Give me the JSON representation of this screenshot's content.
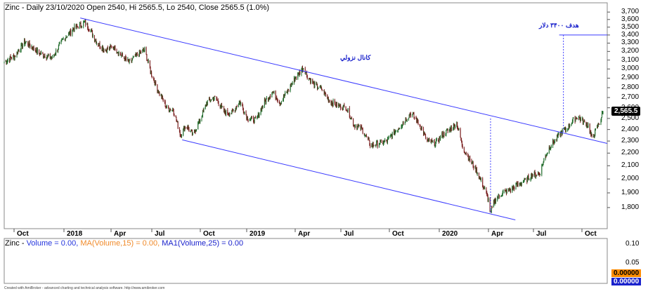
{
  "header": {
    "title": "Zinc - Daily 23/10/2020 Open 2540, Hi 2565.5, Lo 2540, Close 2565.5 (1.0%)"
  },
  "volume_header": {
    "prefix": "Zinc - ",
    "volume": "Volume = 0.00,",
    "ma15": "MA(Volume,15) = 0.00,",
    "ma25": "MA1(Volume,25) = 0.00"
  },
  "annotations": {
    "channel": "كانال نزولي",
    "target": "هدف ۳۴۰۰ دلار"
  },
  "price_tag": "2,565.5",
  "volume_tags": [
    "0.00000",
    "0.00000"
  ],
  "volume_axis": [
    "0.10",
    "0.05"
  ],
  "footer": "Created with AmiBroker - advanced charting and technical analysis software. http://www.amibroker.com",
  "colors": {
    "up": "#1f6b2a",
    "down": "#7a1f1f",
    "channel": "#3b3bff",
    "grid": "#cccccc"
  },
  "chart_data": {
    "type": "candlestick",
    "title": "Zinc - Daily 23/10/2020 Open 2540, Hi 2565.5, Lo 2540, Close 2565.5 (1.0%)",
    "x_tick_labels": [
      "Oct",
      "2018",
      "Apr",
      "Jul",
      "Oct",
      "2019",
      "Apr",
      "Jul",
      "Oct",
      "2020",
      "Apr",
      "Jul",
      "Oct"
    ],
    "y_tick_labels": [
      "3,700",
      "3,600",
      "3,500",
      "3,400",
      "3,300",
      "3,200",
      "3,100",
      "3,000",
      "2,900",
      "2,800",
      "2,700",
      "2,600",
      "2,500",
      "2,400",
      "2,300",
      "2,200",
      "2,100",
      "2,000",
      "1,900",
      "1,800"
    ],
    "y_log": true,
    "ylim": [
      1700,
      3750
    ],
    "x_range": [
      "2017-09-15",
      "2020-10-31"
    ],
    "close_anchors": [
      [
        "2017-09-15",
        3080
      ],
      [
        "2017-10-05",
        3150
      ],
      [
        "2017-10-25",
        3320
      ],
      [
        "2017-11-20",
        3180
      ],
      [
        "2017-12-15",
        3120
      ],
      [
        "2018-01-05",
        3350
      ],
      [
        "2018-01-25",
        3480
      ],
      [
        "2018-02-15",
        3560
      ],
      [
        "2018-02-25",
        3460
      ],
      [
        "2018-03-10",
        3300
      ],
      [
        "2018-03-25",
        3220
      ],
      [
        "2018-04-10",
        3260
      ],
      [
        "2018-04-25",
        3150
      ],
      [
        "2018-05-10",
        3070
      ],
      [
        "2018-05-25",
        3160
      ],
      [
        "2018-06-08",
        3220
      ],
      [
        "2018-06-20",
        2950
      ],
      [
        "2018-07-05",
        2750
      ],
      [
        "2018-07-20",
        2600
      ],
      [
        "2018-08-01",
        2580
      ],
      [
        "2018-08-15",
        2350
      ],
      [
        "2018-08-25",
        2440
      ],
      [
        "2018-09-07",
        2350
      ],
      [
        "2018-09-20",
        2480
      ],
      [
        "2018-10-05",
        2660
      ],
      [
        "2018-10-20",
        2700
      ],
      [
        "2018-11-05",
        2560
      ],
      [
        "2018-11-20",
        2550
      ],
      [
        "2018-12-05",
        2660
      ],
      [
        "2018-12-20",
        2500
      ],
      [
        "2019-01-05",
        2480
      ],
      [
        "2019-01-20",
        2650
      ],
      [
        "2019-02-05",
        2760
      ],
      [
        "2019-02-20",
        2650
      ],
      [
        "2019-03-05",
        2760
      ],
      [
        "2019-03-20",
        2900
      ],
      [
        "2019-04-05",
        3020
      ],
      [
        "2019-04-12",
        2920
      ],
      [
        "2019-04-25",
        2830
      ],
      [
        "2019-05-10",
        2780
      ],
      [
        "2019-05-25",
        2660
      ],
      [
        "2019-06-10",
        2620
      ],
      [
        "2019-06-25",
        2600
      ],
      [
        "2019-07-10",
        2440
      ],
      [
        "2019-07-25",
        2400
      ],
      [
        "2019-08-10",
        2260
      ],
      [
        "2019-08-25",
        2280
      ],
      [
        "2019-09-10",
        2300
      ],
      [
        "2019-09-25",
        2380
      ],
      [
        "2019-10-10",
        2460
      ],
      [
        "2019-10-25",
        2550
      ],
      [
        "2019-11-10",
        2450
      ],
      [
        "2019-11-25",
        2300
      ],
      [
        "2019-12-10",
        2280
      ],
      [
        "2019-12-25",
        2360
      ],
      [
        "2020-01-10",
        2410
      ],
      [
        "2020-01-20",
        2460
      ],
      [
        "2020-01-31",
        2250
      ],
      [
        "2020-02-15",
        2140
      ],
      [
        "2020-02-28",
        2050
      ],
      [
        "2020-03-10",
        1950
      ],
      [
        "2020-03-20",
        1850
      ],
      [
        "2020-03-24",
        1760
      ],
      [
        "2020-04-01",
        1850
      ],
      [
        "2020-04-15",
        1900
      ],
      [
        "2020-04-30",
        1920
      ],
      [
        "2020-05-15",
        1960
      ],
      [
        "2020-05-30",
        1990
      ],
      [
        "2020-06-10",
        2030
      ],
      [
        "2020-06-25",
        2040
      ],
      [
        "2020-07-05",
        2170
      ],
      [
        "2020-07-15",
        2260
      ],
      [
        "2020-07-25",
        2310
      ],
      [
        "2020-08-05",
        2380
      ],
      [
        "2020-08-15",
        2400
      ],
      [
        "2020-08-25",
        2470
      ],
      [
        "2020-09-05",
        2520
      ],
      [
        "2020-09-15",
        2470
      ],
      [
        "2020-09-25",
        2440
      ],
      [
        "2020-10-02",
        2320
      ],
      [
        "2020-10-10",
        2400
      ],
      [
        "2020-10-18",
        2480
      ],
      [
        "2020-10-23",
        2565.5
      ]
    ],
    "channel_upper": [
      [
        "2018-02-06",
        3620
      ],
      [
        "2020-10-31",
        2280
      ]
    ],
    "channel_lower": [
      [
        "2018-08-18",
        2310
      ],
      [
        "2020-05-10",
        1720
      ]
    ],
    "target_line": {
      "price": 3400,
      "from": "2020-08-01",
      "to": "2020-10-31"
    },
    "projection_lines": [
      {
        "date": "2020-03-24",
        "from": 2500,
        "to": 1760
      },
      {
        "date": "2020-08-09",
        "from": 3400,
        "to": 2380
      }
    ],
    "volume": {
      "volume": 0.0,
      "ma15": 0.0,
      "ma25": 0.0,
      "ylim": [
        0,
        0.12
      ]
    }
  }
}
